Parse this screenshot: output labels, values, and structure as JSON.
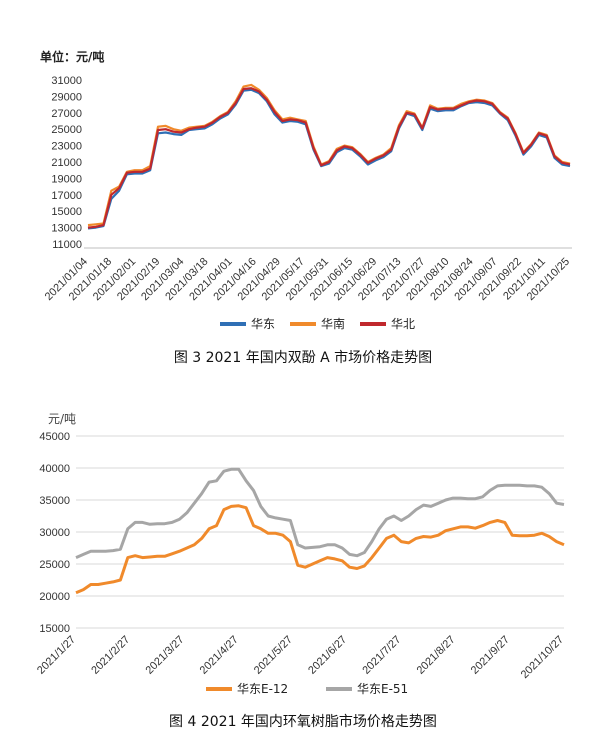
{
  "chart_data": [
    {
      "type": "line",
      "caption": "图 3  2021 年国内双酚 A 市场价格走势图",
      "unit_label": "单位：元/吨",
      "ylim": [
        11000,
        31000
      ],
      "yticks": [
        "11000",
        "13000",
        "15000",
        "17000",
        "19000",
        "21000",
        "23000",
        "25000",
        "27000",
        "29000",
        "31000"
      ],
      "x_labels": [
        "2021/01/04",
        "2021/01/18",
        "2021/02/01",
        "2021/02/19",
        "2021/03/04",
        "2021/03/18",
        "2021/04/01",
        "2021/04/16",
        "2021/04/29",
        "2021/05/17",
        "2021/05/31",
        "2021/06/15",
        "2021/06/29",
        "2021/07/13",
        "2021/07/27",
        "2021/08/10",
        "2021/08/24",
        "2021/09/07",
        "2021/09/22",
        "2021/10/11",
        "2021/10/25"
      ],
      "colors": [
        "#2f6fb5",
        "#f08a2b",
        "#c0282d"
      ],
      "series": [
        {
          "name": "华东",
          "values": [
            12900,
            13000,
            13200,
            16500,
            17500,
            19500,
            19600,
            19600,
            20000,
            24500,
            24600,
            24400,
            24300,
            24900,
            25000,
            25100,
            25600,
            26300,
            26800,
            28000,
            29700,
            29800,
            29400,
            28400,
            26800,
            25800,
            26000,
            25900,
            25600,
            22500,
            20500,
            20800,
            22200,
            22700,
            22500,
            21700,
            20700,
            21200,
            21600,
            22300,
            25100,
            26900,
            26600,
            24900,
            27500,
            27200,
            27300,
            27300,
            27800,
            28200,
            28300,
            28200,
            27900,
            26900,
            26100,
            24200,
            21900,
            22900,
            24300,
            24000,
            21500,
            20700,
            20500
          ]
        },
        {
          "name": "华南",
          "values": [
            13300,
            13400,
            13500,
            17500,
            18000,
            19800,
            20000,
            20000,
            20500,
            25300,
            25400,
            25000,
            24800,
            25200,
            25300,
            25400,
            25900,
            26600,
            27100,
            28400,
            30200,
            30400,
            29800,
            28800,
            27300,
            26200,
            26400,
            26200,
            26000,
            22900,
            20700,
            21100,
            22600,
            23000,
            22800,
            22000,
            21000,
            21500,
            21900,
            22700,
            25500,
            27200,
            26900,
            25200,
            27900,
            27500,
            27600,
            27600,
            28100,
            28400,
            28600,
            28500,
            28200,
            27100,
            26400,
            24500,
            22200,
            23200,
            24600,
            24300,
            21800,
            21000,
            20800
          ]
        },
        {
          "name": "华北",
          "values": [
            13000,
            13100,
            13300,
            17000,
            17800,
            19700,
            19800,
            19800,
            20200,
            24900,
            25000,
            24700,
            24600,
            25000,
            25200,
            25300,
            25800,
            26500,
            27000,
            28200,
            29900,
            30000,
            29600,
            28600,
            27100,
            26000,
            26200,
            26100,
            25800,
            22700,
            20600,
            21000,
            22400,
            22900,
            22700,
            21900,
            20900,
            21400,
            21800,
            22500,
            25300,
            27000,
            26800,
            25100,
            27700,
            27400,
            27500,
            27500,
            27900,
            28300,
            28500,
            28400,
            28100,
            27000,
            26300,
            24400,
            22100,
            23100,
            24500,
            24200,
            21700,
            20900,
            20700
          ]
        }
      ]
    },
    {
      "type": "line",
      "caption": "图 4  2021 年国内环氧树脂市场价格走势图",
      "unit_label": "元/吨",
      "ylim": [
        15000,
        45000
      ],
      "yticks": [
        "15000",
        "20000",
        "25000",
        "30000",
        "35000",
        "40000",
        "45000"
      ],
      "x_labels": [
        "2021/1/27",
        "2021/2/27",
        "2021/3/27",
        "2021/4/27",
        "2021/5/27",
        "2021/6/27",
        "2021/7/27",
        "2021/8/27",
        "2021/9/27",
        "2021/10/27"
      ],
      "colors": [
        "#f08a2b",
        "#a6a6a6"
      ],
      "series": [
        {
          "name": "华东E-12",
          "values": [
            20500,
            21000,
            21800,
            21800,
            22000,
            22200,
            22500,
            26000,
            26300,
            26000,
            26100,
            26200,
            26200,
            26600,
            27000,
            27500,
            28000,
            29000,
            30500,
            31000,
            33500,
            34000,
            34100,
            33800,
            31000,
            30500,
            29800,
            29800,
            29500,
            28500,
            24800,
            24500,
            25000,
            25500,
            26000,
            25800,
            25500,
            24500,
            24300,
            24700,
            26000,
            27500,
            29000,
            29500,
            28500,
            28300,
            29000,
            29300,
            29200,
            29500,
            30200,
            30500,
            30800,
            30800,
            30600,
            31000,
            31500,
            31800,
            31500,
            29500,
            29400,
            29400,
            29500,
            29800,
            29300,
            28500,
            28000
          ]
        },
        {
          "name": "华东E-51",
          "values": [
            26000,
            26500,
            27000,
            27000,
            27000,
            27100,
            27300,
            30500,
            31500,
            31500,
            31200,
            31300,
            31300,
            31500,
            32000,
            33000,
            34500,
            36000,
            37800,
            38000,
            39500,
            39800,
            39800,
            38000,
            36500,
            34000,
            32500,
            32200,
            32000,
            31800,
            28000,
            27500,
            27600,
            27700,
            28000,
            28000,
            27500,
            26500,
            26300,
            26800,
            28500,
            30500,
            32000,
            32500,
            31800,
            32500,
            33500,
            34200,
            34000,
            34500,
            35000,
            35300,
            35300,
            35200,
            35200,
            35500,
            36500,
            37200,
            37300,
            37300,
            37300,
            37200,
            37200,
            37000,
            36000,
            34500,
            34300
          ]
        }
      ]
    }
  ]
}
